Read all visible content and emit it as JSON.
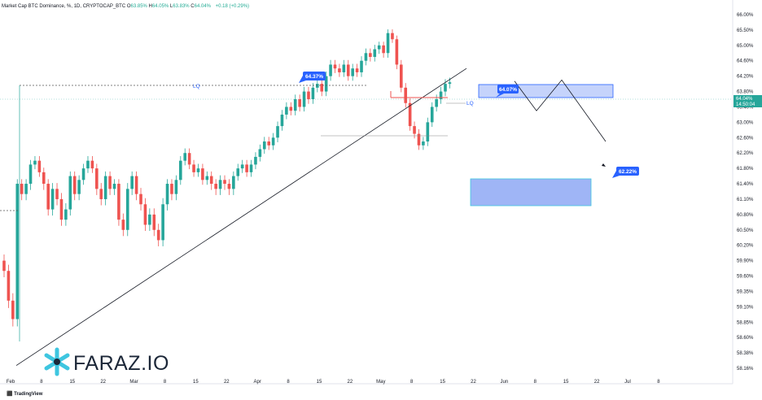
{
  "header": {
    "symbol": "Market Cap BTC Dominance, %, 1D, CRYPTOCAP_BTC",
    "ohlc": [
      {
        "label": "O",
        "value": "63.85%"
      },
      {
        "label": "H",
        "value": "64.05%"
      },
      {
        "label": "L",
        "value": "63.83%"
      },
      {
        "label": "C",
        "value": "64.04%"
      }
    ],
    "change": "+0.18 (+0.29%)"
  },
  "brand": {
    "logo_text": "FARAZ.IO",
    "watermark": "TradingView"
  },
  "colors": {
    "up": "#26a69a",
    "down": "#ef5350",
    "zone": "#4f7bf7",
    "label": "#2962ff",
    "trend": "#131722"
  },
  "chart_data": {
    "type": "candlestick",
    "y_axis_ticks": [
      "66.00%",
      "65.50%",
      "65.00%",
      "64.60%",
      "64.20%",
      "63.80%",
      "63.40%",
      "63.00%",
      "62.60%",
      "62.20%",
      "61.80%",
      "61.40%",
      "61.10%",
      "60.80%",
      "60.50%",
      "60.20%",
      "59.90%",
      "59.60%",
      "59.35%",
      "59.10%",
      "58.85%",
      "58.60%",
      "58.38%",
      "58.16%"
    ],
    "x_axis_ticks": [
      "Feb",
      "8",
      "15",
      "22",
      "Mar",
      "8",
      "15",
      "22",
      "Apr",
      "8",
      "15",
      "22",
      "May",
      "8",
      "15",
      "22",
      "Jun",
      "8",
      "15",
      "22",
      "Jul",
      "8"
    ],
    "current_price": "64.04%",
    "countdown": "14:50:04",
    "annotations": {
      "high_label": "64.37%",
      "zone_label": "64.07%",
      "target_label": "62.22%",
      "liquidity_1": "LQ",
      "liquidity_2": "LQ"
    },
    "candles_close": [
      59.7,
      59.2,
      58.9,
      61.4,
      61.2,
      61.4,
      61.9,
      62.0,
      61.7,
      61.4,
      60.9,
      61.3,
      61.1,
      60.7,
      60.9,
      61.6,
      61.2,
      61.5,
      61.8,
      62.0,
      61.8,
      61.3,
      61.1,
      61.6,
      61.3,
      61.4,
      60.7,
      60.5,
      61.3,
      61.6,
      61.2,
      61.0,
      60.6,
      60.8,
      60.5,
      60.3,
      61.0,
      61.4,
      61.2,
      61.5,
      62.0,
      62.2,
      61.9,
      61.7,
      61.8,
      61.5,
      61.6,
      61.4,
      61.3,
      61.5,
      61.4,
      61.3,
      61.6,
      61.8,
      61.9,
      61.7,
      61.9,
      62.1,
      62.3,
      62.5,
      62.4,
      62.6,
      62.9,
      63.2,
      63.4,
      63.3,
      63.6,
      63.4,
      63.8,
      63.6,
      63.9,
      64.0,
      63.8,
      64.2,
      64.5,
      64.4,
      64.3,
      64.5,
      64.2,
      64.4,
      64.3,
      64.6,
      64.8,
      64.7,
      64.9,
      65.0,
      64.8,
      65.4,
      65.2,
      64.5,
      63.9,
      63.5,
      62.9,
      62.7,
      62.4,
      62.5,
      63.0,
      63.4,
      63.6,
      63.8,
      64.0,
      64.04
    ],
    "trendline": {
      "from_value": 58.2,
      "to_value": 64.4
    },
    "projected_path": [
      64.07,
      63.3,
      64.1,
      62.5
    ]
  }
}
